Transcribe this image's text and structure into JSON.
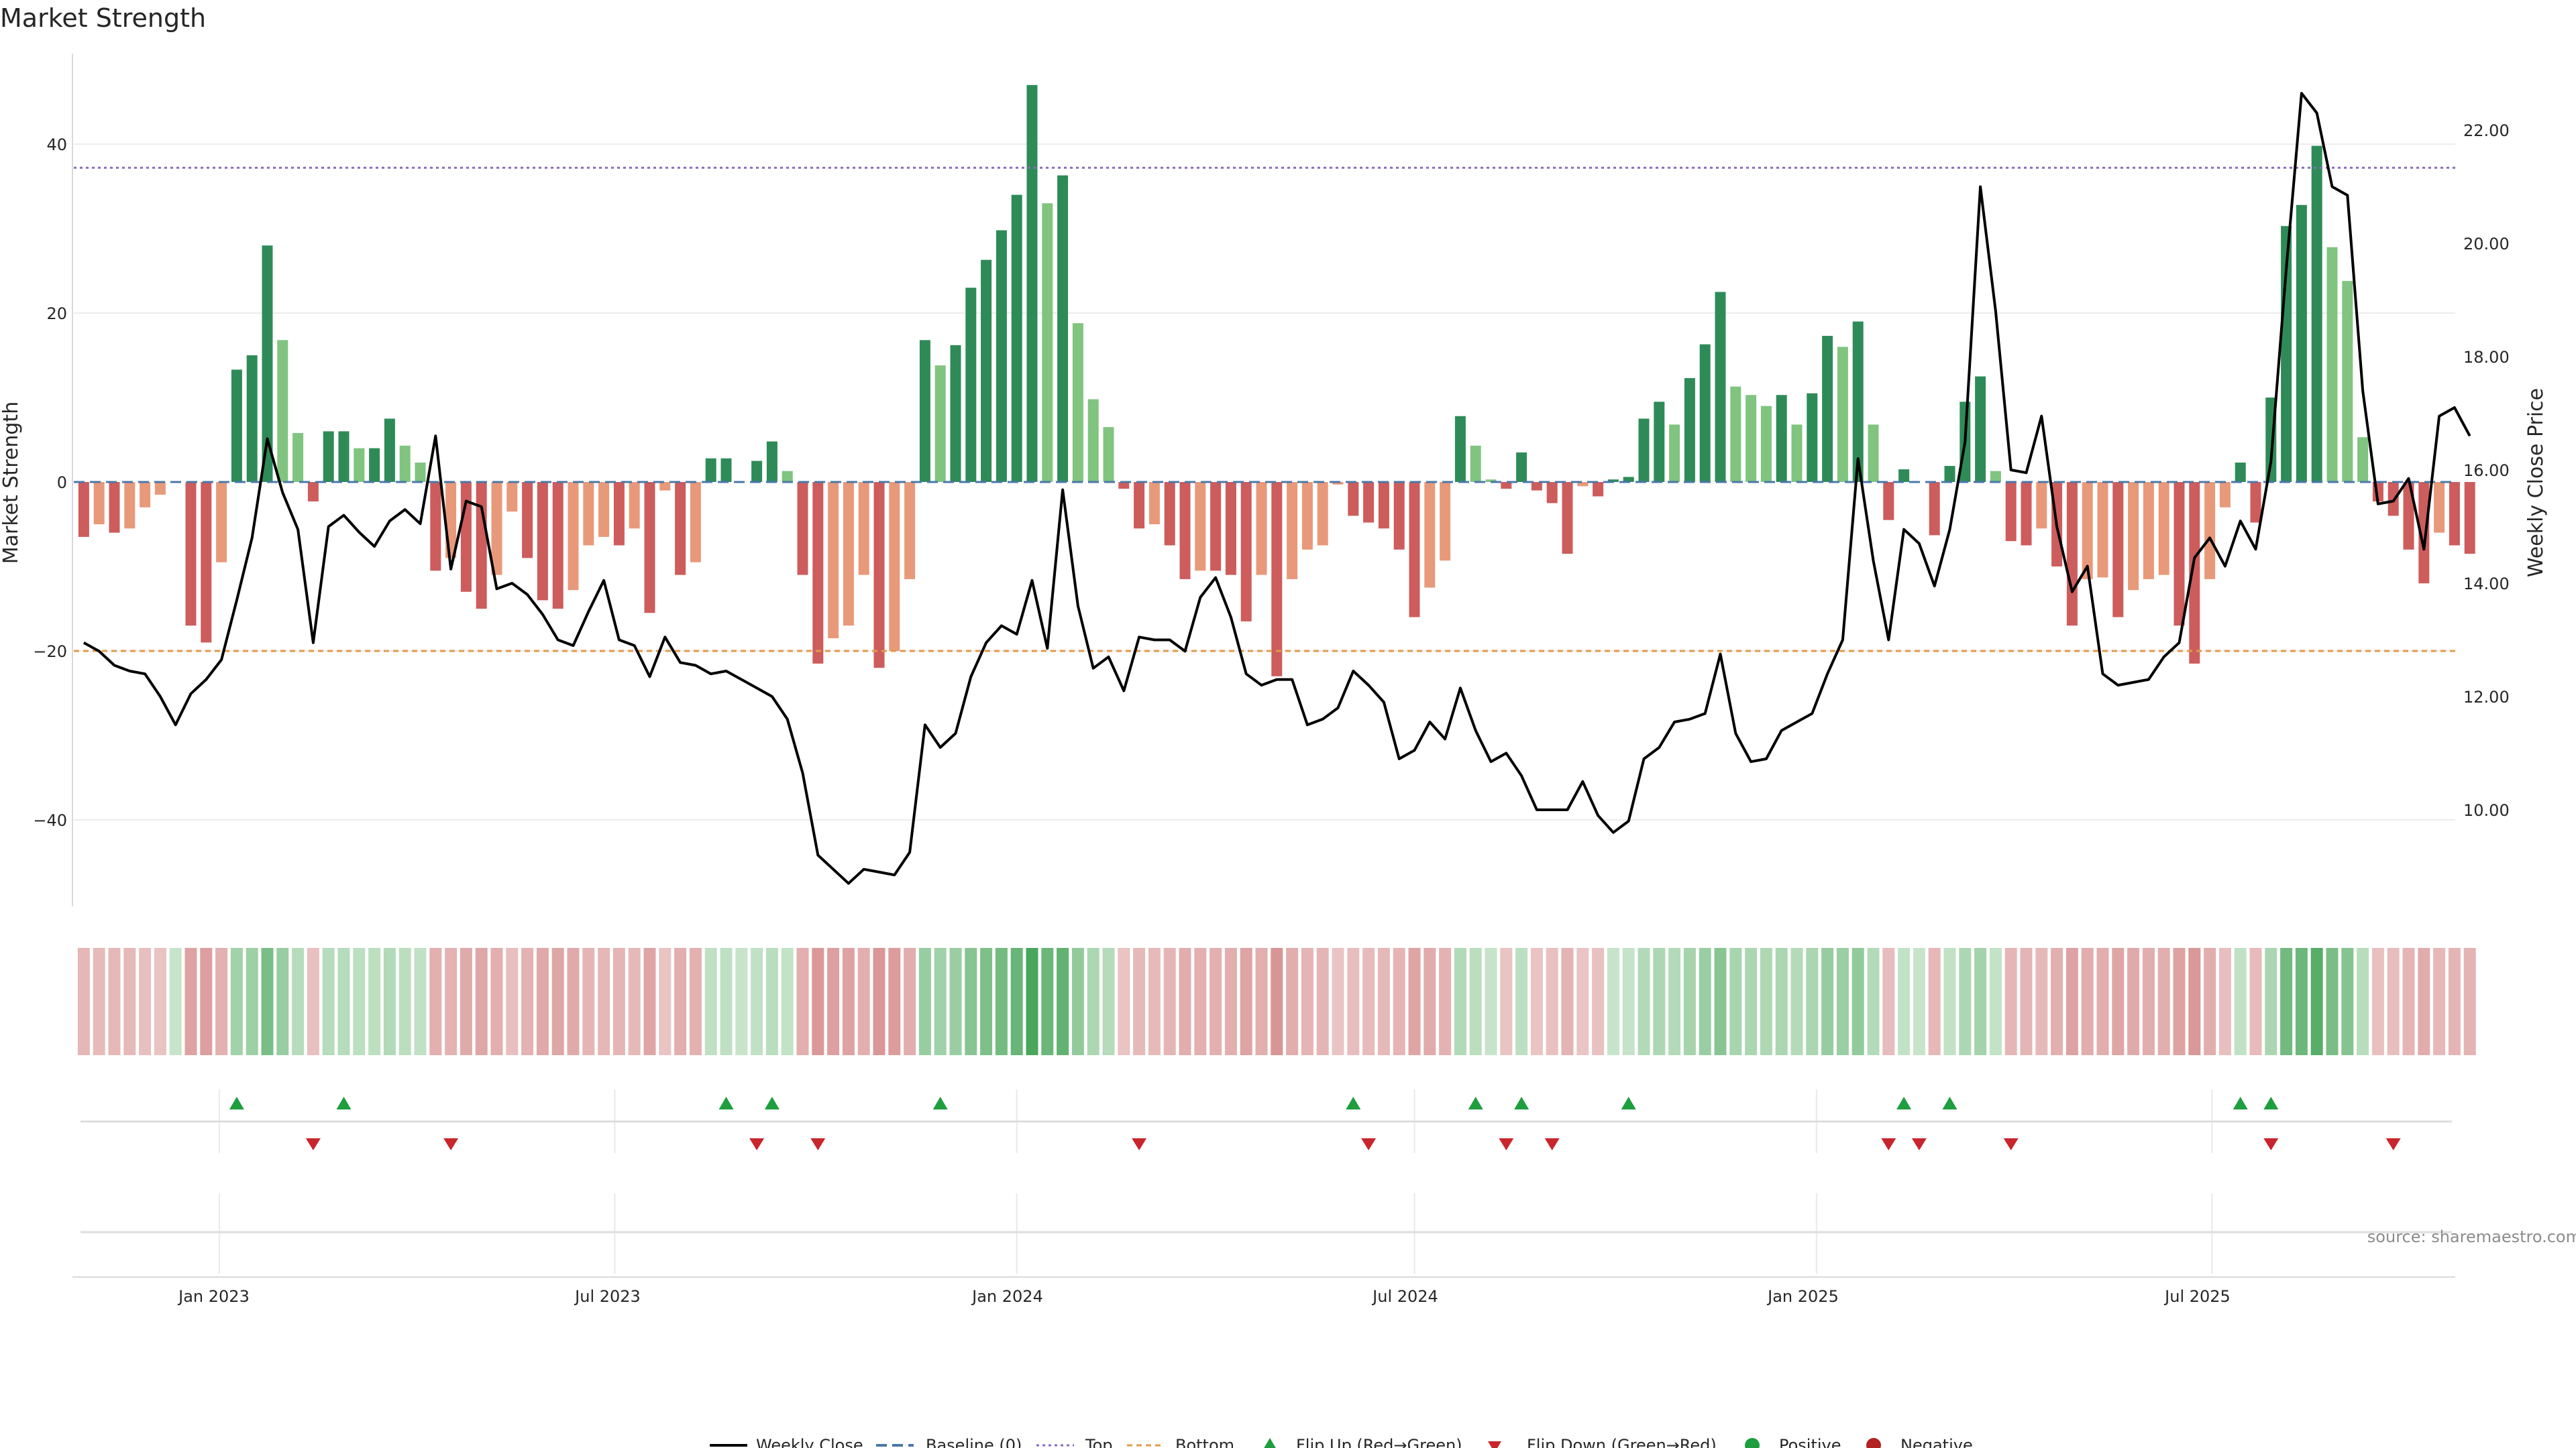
{
  "title": "Market Strength",
  "source": "source: sharemaestro.com",
  "colors": {
    "strong_pos": "#2e8b57",
    "weak_pos": "#80c480",
    "strong_neg": "#cd5c5c",
    "weak_neg": "#e8997a",
    "price_line": "#000000",
    "top_line": "#8a6bbd",
    "bottom_line": "#e09a4c",
    "baseline": "#4a78a8",
    "flip_up": "#1e9e3e",
    "flip_down": "#c8262c",
    "positive": "#1e9e3e",
    "negative": "#b22222"
  },
  "chart_data": {
    "type": "bar",
    "left_axis": {
      "label": "Market Strength",
      "ylim": [
        -50,
        50
      ],
      "ticks": [
        "40",
        "20",
        "0",
        "−20",
        "−40"
      ]
    },
    "right_axis": {
      "label": "Weekly Close Price",
      "ylim": [
        8.5,
        23.4
      ],
      "ticks": [
        "22.00",
        "20.00",
        "18.00",
        "16.00",
        "14.00",
        "12.00",
        "10.00"
      ]
    },
    "x_ticks": [
      "Jan 2023",
      "Jul 2023",
      "Jan 2024",
      "Jul 2024",
      "Jan 2025",
      "Jul 2025"
    ],
    "start_date": "2022-10-31",
    "thresholds": {
      "top": 37.2,
      "bottom": -20,
      "baseline": 0
    },
    "strength": [
      -6.5,
      -5.0,
      -6.0,
      -5.5,
      -3.0,
      -1.5,
      0,
      -17.0,
      -19.0,
      -9.5,
      13.3,
      15.0,
      28.0,
      16.8,
      5.8,
      -2.3,
      6.0,
      6.0,
      4.0,
      4.0,
      7.5,
      4.3,
      2.3,
      -10.5,
      -9.0,
      -13.0,
      -15.0,
      -11.0,
      -3.5,
      -9.0,
      -14.0,
      -15.0,
      -12.8,
      -7.5,
      -6.5,
      -7.5,
      -5.5,
      -15.5,
      -1.0,
      -11.0,
      -9.5,
      2.8,
      2.8,
      0,
      2.5,
      4.8,
      1.3,
      -11.0,
      -21.5,
      -18.5,
      -17.0,
      -11.0,
      -22.0,
      -20.0,
      -11.5,
      16.8,
      13.8,
      16.2,
      23.0,
      26.3,
      29.8,
      34.0,
      47.0,
      33.0,
      36.3,
      18.8,
      9.8,
      6.5,
      -0.8,
      -5.5,
      -5.0,
      -7.5,
      -11.5,
      -10.5,
      -10.5,
      -11.0,
      -16.5,
      -11.0,
      -23.0,
      -11.5,
      -8.0,
      -7.5,
      -0.3,
      -4.0,
      -4.8,
      -5.5,
      -8.0,
      -16.0,
      -12.5,
      -9.3,
      7.8,
      4.3,
      0.3,
      -0.8,
      3.5,
      -1.0,
      -2.5,
      -8.5,
      -0.5,
      -1.7,
      0.3,
      0.6,
      7.5,
      9.5,
      6.8,
      12.3,
      16.3,
      22.5,
      11.3,
      10.3,
      9.0,
      10.3,
      6.8,
      10.5,
      17.3,
      16.0,
      19.0,
      6.8,
      -4.5,
      1.5,
      0,
      -6.3,
      1.9,
      9.5,
      12.5,
      1.3,
      -7.0,
      -7.5,
      -5.5,
      -10.0,
      -17.0,
      -11.5,
      -11.3,
      -16.0,
      -12.8,
      -11.5,
      -11.0,
      -17.0,
      -21.5,
      -11.5,
      -3.0,
      2.3,
      -4.8,
      10.0,
      30.3,
      32.8,
      39.8,
      27.8,
      23.8,
      5.3,
      -2.3,
      -4.0,
      -8.0,
      -12.0,
      -6.0,
      -7.5,
      -8.5
    ],
    "price": [
      12.95,
      12.8,
      12.55,
      12.45,
      12.4,
      12.0,
      11.5,
      12.05,
      12.3,
      12.65,
      13.7,
      14.8,
      16.55,
      15.6,
      14.95,
      12.95,
      15.0,
      15.2,
      14.9,
      14.65,
      15.1,
      15.3,
      15.05,
      16.6,
      14.25,
      15.45,
      15.35,
      13.9,
      14.0,
      13.8,
      13.45,
      13.0,
      12.9,
      13.5,
      14.05,
      13.0,
      12.9,
      12.35,
      13.05,
      12.6,
      12.55,
      12.4,
      12.45,
      12.3,
      12.15,
      12.0,
      11.6,
      10.65,
      9.2,
      8.95,
      8.7,
      8.95,
      8.9,
      8.85,
      9.25,
      11.5,
      11.1,
      11.35,
      12.35,
      12.95,
      13.25,
      13.1,
      14.05,
      12.85,
      15.65,
      13.6,
      12.5,
      12.7,
      12.1,
      13.05,
      13.0,
      13.0,
      12.8,
      13.75,
      14.1,
      13.4,
      12.4,
      12.2,
      12.3,
      12.3,
      11.5,
      11.6,
      11.8,
      12.45,
      12.2,
      11.9,
      10.9,
      11.05,
      11.55,
      11.25,
      12.15,
      11.4,
      10.85,
      11.0,
      10.6,
      10.0,
      10.0,
      10.0,
      10.5,
      9.9,
      9.6,
      9.8,
      10.9,
      11.1,
      11.55,
      11.6,
      11.7,
      12.75,
      11.35,
      10.85,
      10.9,
      11.4,
      11.55,
      11.7,
      12.4,
      13.0,
      16.2,
      14.4,
      13.0,
      14.95,
      14.7,
      13.95,
      14.95,
      16.5,
      21.0,
      18.8,
      16.0,
      15.95,
      16.95,
      15.0,
      13.85,
      14.3,
      12.4,
      12.2,
      12.25,
      12.3,
      12.7,
      12.95,
      14.45,
      14.8,
      14.3,
      15.1,
      14.6,
      16.15,
      19.55,
      22.65,
      22.3,
      21.0,
      20.85,
      17.4,
      15.4,
      15.45,
      15.85,
      14.6,
      16.95,
      17.1,
      16.6
    ],
    "flip_up_index": [
      10,
      17,
      42,
      45,
      56,
      83,
      91,
      94,
      101,
      119,
      122,
      141,
      143
    ],
    "flip_down_index": [
      15,
      24,
      44,
      48,
      69,
      84,
      93,
      96,
      118,
      120,
      126,
      143,
      151
    ],
    "legend": [
      "Weekly Close",
      "Baseline (0)",
      "Top",
      "Bottom",
      "Flip Up (Red→Green)",
      "Flip Down (Green→Red)",
      "Positive",
      "Negative"
    ]
  }
}
